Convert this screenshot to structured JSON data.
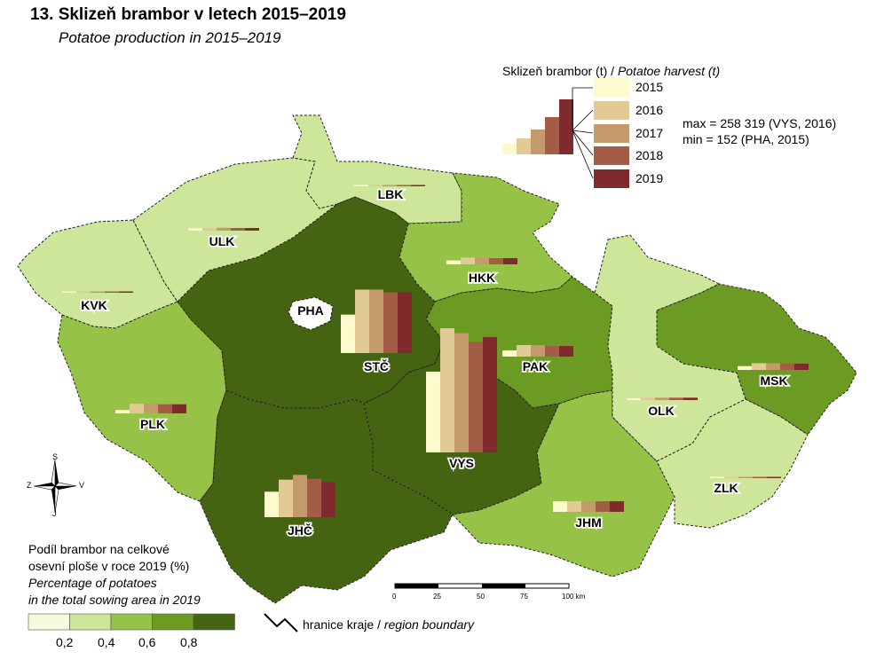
{
  "title": "13. Sklizeň brambor v letech 2015–2019",
  "subtitle": "Potatoe production in 2015–2019",
  "harvest_legend": {
    "title_cz": "Sklizeň brambor (t) /",
    "title_en": "Potatoe harvest  (t)",
    "years": [
      "2015",
      "2016",
      "2017",
      "2018",
      "2019"
    ],
    "colors": [
      "#fdfbcd",
      "#e2ca97",
      "#c49a6d",
      "#a35c45",
      "#7f2a2d"
    ],
    "max": "max = 258 319 (VYS, 2016)",
    "min": "min = 152 (PHA, 2015)"
  },
  "share_legend": {
    "title_cz_1": "Podíl brambor na celkové",
    "title_cz_2": "osevní ploše v roce 2019 (%)",
    "title_en_1": "Percentage of potatoes",
    "title_en_2": "in the total sowing area in 2019",
    "classes": [
      "#f6fadb",
      "#cde69a",
      "#96c347",
      "#6b9b22",
      "#456411"
    ],
    "ticks": [
      "0,2",
      "0,4",
      "0,6",
      "0,8"
    ]
  },
  "boundary_legend": {
    "text_cz": "hranice kraje / ",
    "text_en": "region boundary"
  },
  "scale_bar": {
    "ticks": [
      "0",
      "25",
      "50",
      "75",
      "100 km"
    ]
  },
  "compass": {
    "n": "S",
    "s": "J",
    "w": "Z",
    "e": "V"
  },
  "regions": [
    {
      "code": "PHA",
      "fill": "#ffffff",
      "harvest": [
        152,
        220,
        210,
        260,
        230
      ]
    },
    {
      "code": "STČ",
      "fill": "#456411",
      "harvest": [
        80000,
        132000,
        132000,
        126000,
        126000
      ]
    },
    {
      "code": "JHČ",
      "fill": "#456411",
      "harvest": [
        53000,
        78000,
        88000,
        80000,
        73000
      ]
    },
    {
      "code": "PLK",
      "fill": "#96c347",
      "harvest": [
        7000,
        20000,
        20000,
        19000,
        19000
      ]
    },
    {
      "code": "KVK",
      "fill": "#cde69a",
      "harvest": [
        1000,
        1500,
        1500,
        1400,
        1400
      ]
    },
    {
      "code": "ULK",
      "fill": "#cde69a",
      "harvest": [
        5000,
        6000,
        6000,
        5500,
        5500
      ]
    },
    {
      "code": "LBK",
      "fill": "#cde69a",
      "harvest": [
        2000,
        2500,
        2500,
        2400,
        2400
      ]
    },
    {
      "code": "HKK",
      "fill": "#96c347",
      "harvest": [
        8000,
        14000,
        14000,
        13000,
        13000
      ]
    },
    {
      "code": "PAK",
      "fill": "#6b9b22",
      "harvest": [
        13000,
        24000,
        24000,
        22000,
        22000
      ]
    },
    {
      "code": "VYS",
      "fill": "#456411",
      "harvest": [
        168000,
        258319,
        248000,
        230000,
        240000
      ]
    },
    {
      "code": "JHM",
      "fill": "#96c347",
      "harvest": [
        22000,
        22000,
        22000,
        22000,
        22000
      ]
    },
    {
      "code": "OLK",
      "fill": "#cde69a",
      "harvest": [
        3500,
        5000,
        5000,
        5000,
        5000
      ]
    },
    {
      "code": "ZLK",
      "fill": "#cde69a",
      "harvest": [
        1500,
        2500,
        2500,
        2500,
        2500
      ]
    },
    {
      "code": "MSK",
      "fill": "#6b9b22",
      "harvest": [
        8000,
        14000,
        14000,
        13000,
        13000
      ]
    }
  ]
}
